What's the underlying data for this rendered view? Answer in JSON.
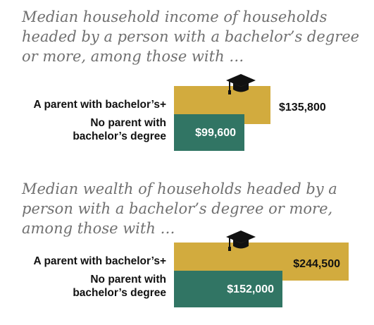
{
  "chart_data": [
    {
      "type": "bar",
      "title": "",
      "subtitle": "Median household income of households headed by a person with a bachelor’s degree or more, among those with …",
      "categories": [
        "A parent with bachelor’s+",
        "No parent with bachelor’s degree"
      ],
      "category_lines": [
        [
          "A parent with bachelor’s+"
        ],
        [
          "No parent with",
          "bachelor’s degree"
        ]
      ],
      "values": [
        135800,
        99600
      ],
      "value_labels": [
        "$135,800",
        "$99,600"
      ],
      "value_label_position": [
        "outside",
        "inside"
      ],
      "colors": [
        "#d2ab3e",
        "#317564"
      ],
      "xlim": [
        0,
        135800
      ],
      "xlabel": "",
      "ylabel": ""
    },
    {
      "type": "bar",
      "title": "",
      "subtitle": "Median wealth of households headed by a person with a bachelor’s degree or more, among those with …",
      "categories": [
        "A parent with bachelor’s+",
        "No parent with bachelor’s degree"
      ],
      "category_lines": [
        [
          "A parent with bachelor’s+"
        ],
        [
          "No parent with",
          "bachelor’s degree"
        ]
      ],
      "values": [
        244500,
        152000
      ],
      "value_labels": [
        "$244,500",
        "$152,000"
      ],
      "value_label_position": [
        "inside",
        "inside"
      ],
      "colors": [
        "#d2ab3e",
        "#317564"
      ],
      "xlim": [
        0,
        244500
      ],
      "xlabel": "",
      "ylabel": ""
    }
  ],
  "icons": {
    "graduation": "graduation-cap-icon"
  }
}
